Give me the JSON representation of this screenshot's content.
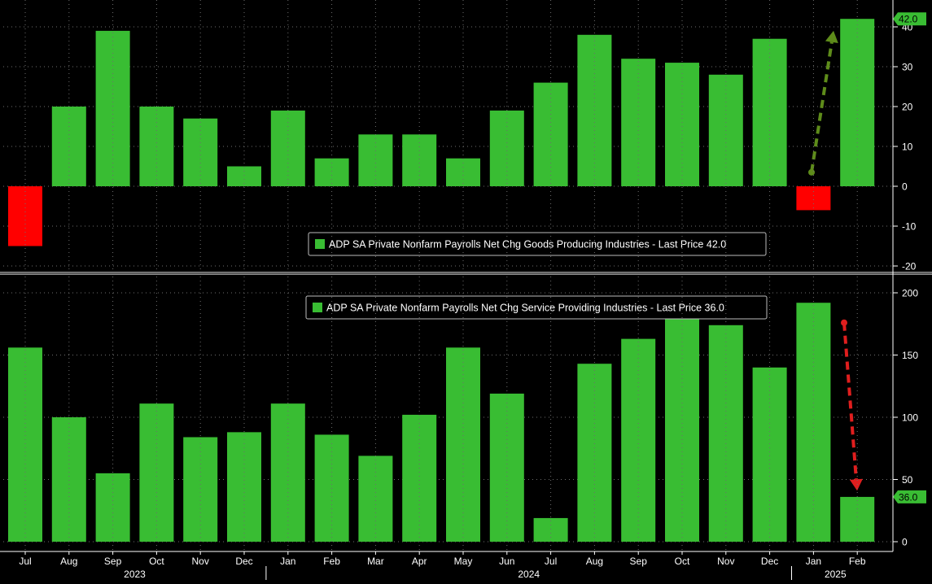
{
  "chart_data": [
    {
      "type": "bar",
      "legend": "ADP SA Private Nonfarm Payrolls Net Chg Goods Producing Industries - Last Price 42.0",
      "last_price_label": "42.0",
      "ylim": [
        -22,
        46
      ],
      "yticks": [
        "-20",
        "-10",
        "0",
        "10",
        "20",
        "30",
        "40"
      ],
      "ytick_values": [
        -20,
        -10,
        0,
        10,
        20,
        30,
        40
      ],
      "categories": [
        "Jul",
        "Aug",
        "Sep",
        "Oct",
        "Nov",
        "Dec",
        "Jan",
        "Feb",
        "Mar",
        "Apr",
        "May",
        "Jun",
        "Jul",
        "Aug",
        "Sep",
        "Oct",
        "Nov",
        "Dec",
        "Jan",
        "Feb"
      ],
      "values": [
        -15,
        20,
        39,
        20,
        17,
        5,
        19,
        7,
        13,
        13,
        7,
        19,
        26,
        38,
        32,
        31,
        28,
        37,
        -6,
        42
      ],
      "annotation": "up arrow from Jan 2025 to Feb 2025",
      "colors": {
        "positive": "#39BD33",
        "negative": "#FF0000",
        "arrow": "#5E8C1A",
        "label_bg": "#39BD33"
      }
    },
    {
      "type": "bar",
      "legend": "ADP SA Private Nonfarm Payrolls Net Chg Service Providing Industries - Last Price 36.0",
      "last_price_label": "36.0",
      "ylim": [
        -2,
        204
      ],
      "yticks": [
        "0",
        "50",
        "100",
        "150",
        "200"
      ],
      "ytick_values": [
        0,
        50,
        100,
        150,
        200
      ],
      "categories": [
        "Jul",
        "Aug",
        "Sep",
        "Oct",
        "Nov",
        "Dec",
        "Jan",
        "Feb",
        "Mar",
        "Apr",
        "May",
        "Jun",
        "Jul",
        "Aug",
        "Sep",
        "Oct",
        "Nov",
        "Dec",
        "Jan",
        "Feb"
      ],
      "values": [
        156,
        100,
        55,
        111,
        84,
        88,
        111,
        86,
        69,
        102,
        156,
        119,
        19,
        143,
        163,
        180,
        174,
        140,
        192,
        36
      ],
      "annotation": "down arrow from Jan 2025 to Feb 2025",
      "colors": {
        "positive": "#39BD33",
        "negative": "#FF0000",
        "arrow": "#E01E1E",
        "label_bg": "#39BD33"
      }
    }
  ],
  "x_axis": {
    "months": [
      "Jul",
      "Aug",
      "Sep",
      "Oct",
      "Nov",
      "Dec",
      "Jan",
      "Feb",
      "Mar",
      "Apr",
      "May",
      "Jun",
      "Jul",
      "Aug",
      "Sep",
      "Oct",
      "Nov",
      "Dec",
      "Jan",
      "Feb"
    ],
    "years": [
      {
        "label": "2023",
        "months": [
          0,
          5
        ]
      },
      {
        "label": "2024",
        "months": [
          6,
          17
        ]
      },
      {
        "label": "2025",
        "months": [
          18,
          19
        ]
      }
    ]
  },
  "colors": {
    "background": "#000000",
    "grid": "#6E6E6E",
    "axis_text": "#FFFFFF",
    "divider": "#8A8A8A"
  }
}
